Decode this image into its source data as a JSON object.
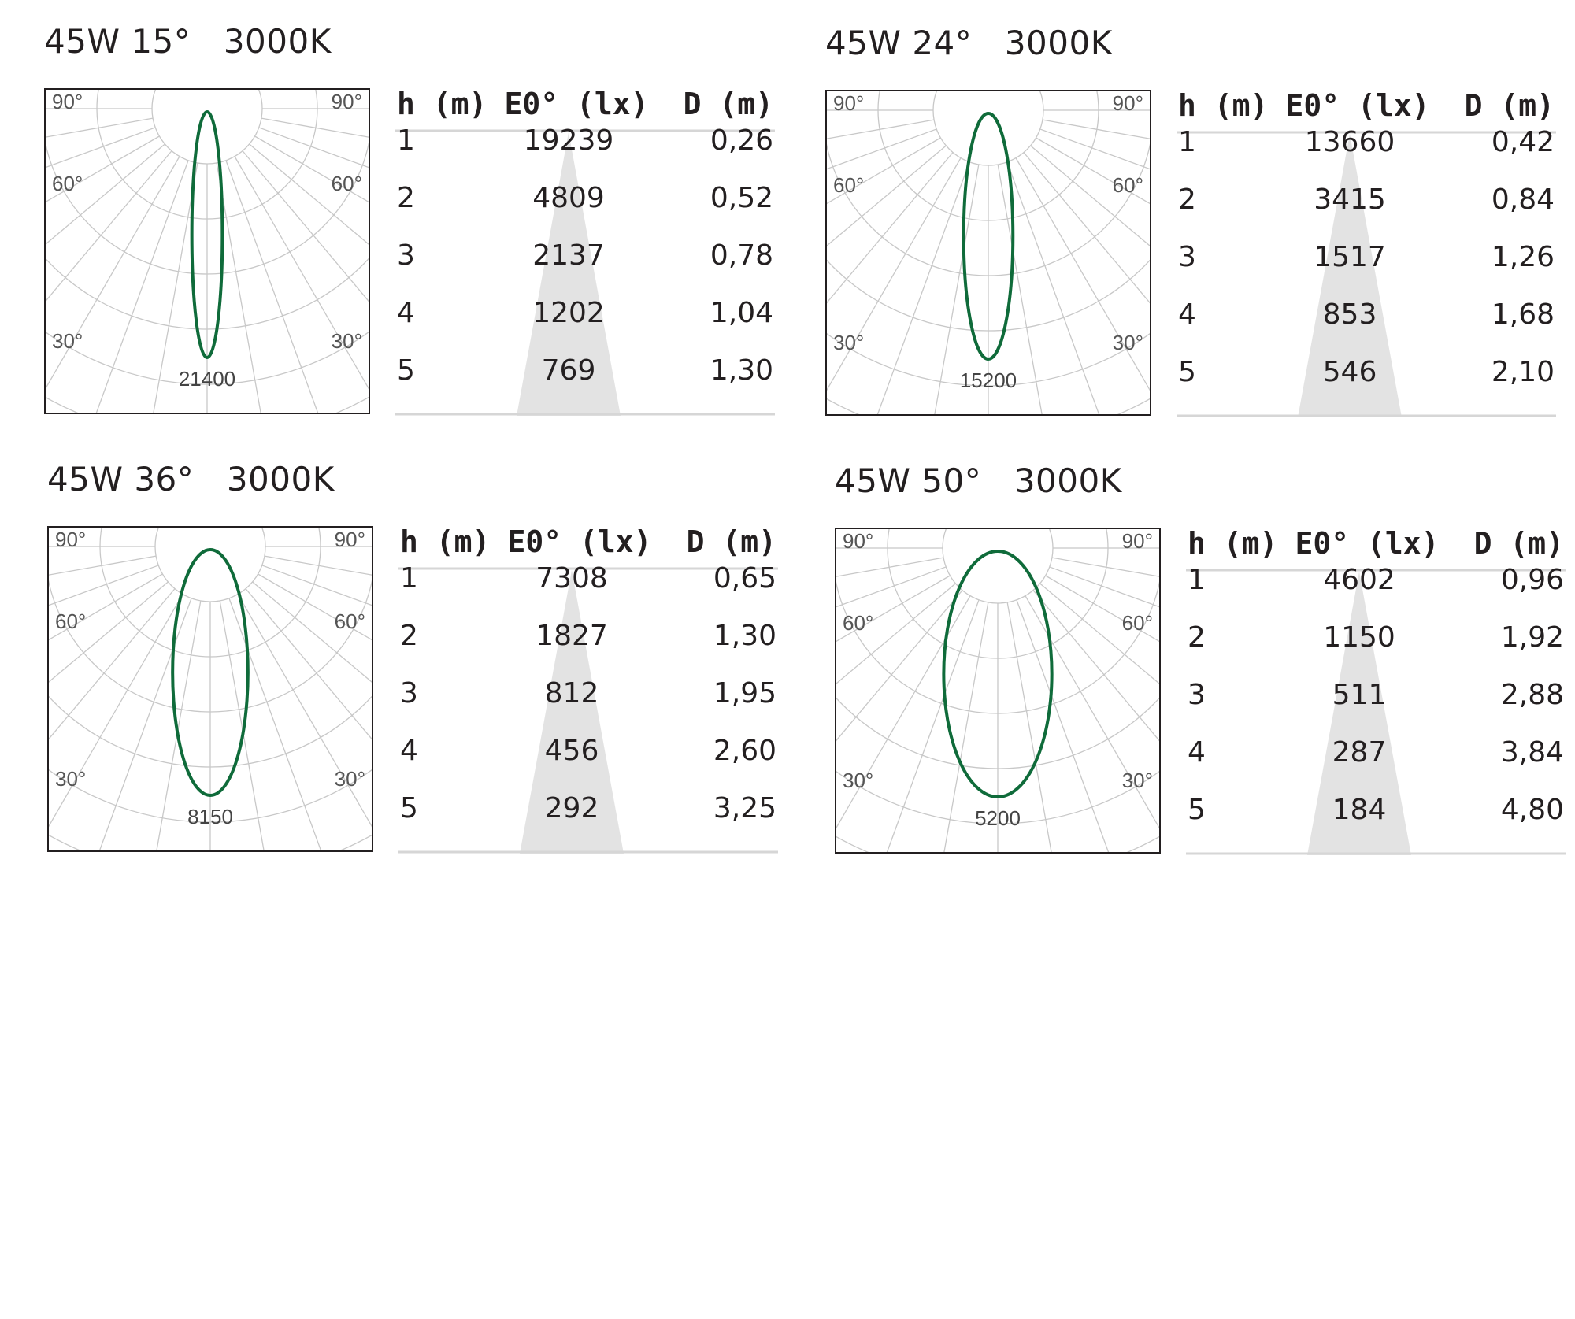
{
  "colors": {
    "curve": "#0f6b3a",
    "grid": "#c8c8c8",
    "cone": "#e3e3e3",
    "ink": "#231f20",
    "rule": "#d6d6d6"
  },
  "table_headers": {
    "h": "h (m)",
    "e": "E0° (lx)",
    "d": "D (m)"
  },
  "angle_labels": {
    "a90": "90°",
    "a60": "60°",
    "a30": "30°"
  },
  "chart_data": [
    {
      "type": "table",
      "title": "45W 15°   3000K",
      "beam_angle_deg": 15,
      "polar_peak_value": "21400",
      "columns": [
        "h (m)",
        "E0° (lx)",
        "D (m)"
      ],
      "rows": [
        [
          "1",
          "19239",
          "0,26"
        ],
        [
          "2",
          "4809",
          "0,52"
        ],
        [
          "3",
          "2137",
          "0,78"
        ],
        [
          "4",
          "1202",
          "1,04"
        ],
        [
          "5",
          "769",
          "1,30"
        ]
      ]
    },
    {
      "type": "table",
      "title": "45W 24°   3000K",
      "beam_angle_deg": 24,
      "polar_peak_value": "15200",
      "columns": [
        "h (m)",
        "E0° (lx)",
        "D (m)"
      ],
      "rows": [
        [
          "1",
          "13660",
          "0,42"
        ],
        [
          "2",
          "3415",
          "0,84"
        ],
        [
          "3",
          "1517",
          "1,26"
        ],
        [
          "4",
          "853",
          "1,68"
        ],
        [
          "5",
          "546",
          "2,10"
        ]
      ]
    },
    {
      "type": "table",
      "title": "45W 36°   3000K",
      "beam_angle_deg": 36,
      "polar_peak_value": "8150",
      "columns": [
        "h (m)",
        "E0° (lx)",
        "D (m)"
      ],
      "rows": [
        [
          "1",
          "7308",
          "0,65"
        ],
        [
          "2",
          "1827",
          "1,30"
        ],
        [
          "3",
          "812",
          "1,95"
        ],
        [
          "4",
          "456",
          "2,60"
        ],
        [
          "5",
          "292",
          "3,25"
        ]
      ]
    },
    {
      "type": "table",
      "title": "45W 50°   3000K",
      "beam_angle_deg": 50,
      "polar_peak_value": "5200",
      "columns": [
        "h (m)",
        "E0° (lx)",
        "D (m)"
      ],
      "rows": [
        [
          "1",
          "4602",
          "0,96"
        ],
        [
          "2",
          "1150",
          "1,92"
        ],
        [
          "3",
          "511",
          "2,88"
        ],
        [
          "4",
          "287",
          "3,84"
        ],
        [
          "5",
          "184",
          "4,80"
        ]
      ]
    }
  ]
}
